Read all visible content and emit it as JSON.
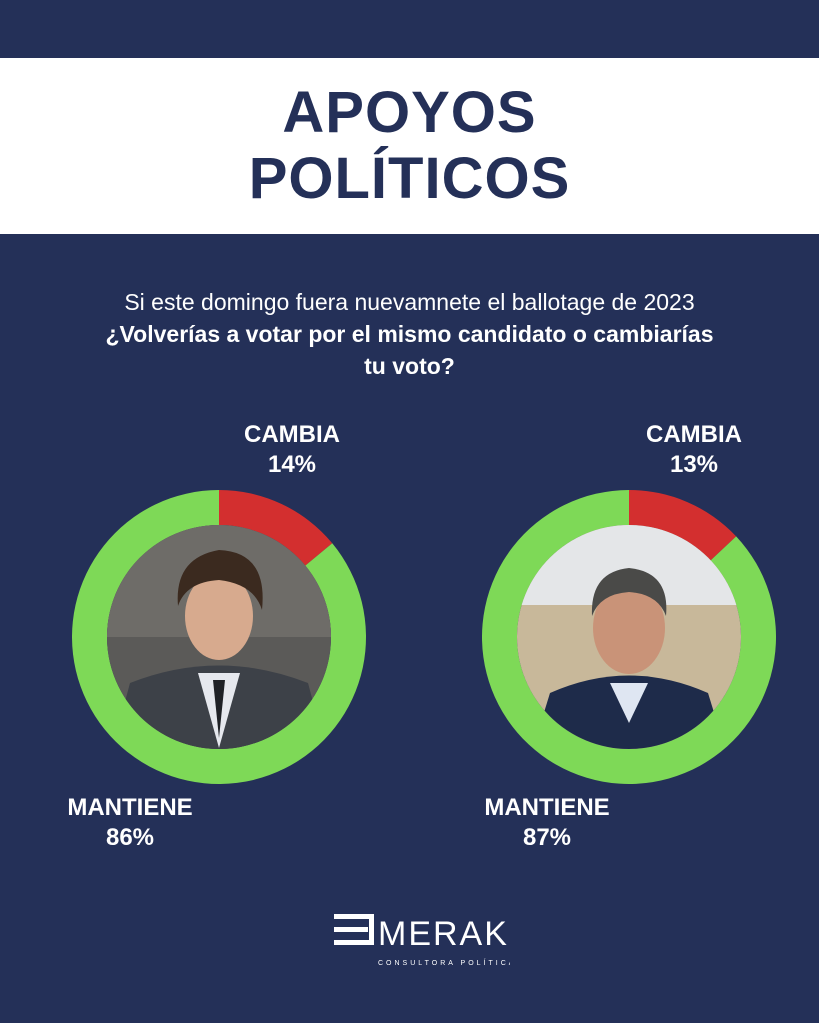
{
  "title": {
    "line1": "APOYOS",
    "line2": "POLÍTICOS"
  },
  "question": {
    "plain": "Si este domingo fuera nuevamnete el ballotage de 2023 ",
    "bold": "¿Volverías a votar por el mismo candidato o cambiarías tu voto?"
  },
  "colors": {
    "background": "#243058",
    "mantiene": "#7ed957",
    "cambia": "#d32f2f",
    "title_text": "#243058"
  },
  "chart_data": [
    {
      "type": "pie",
      "categories": [
        "CAMBIA",
        "MANTIENE"
      ],
      "values": [
        14,
        86
      ],
      "value_labels": [
        "14%",
        "86%"
      ],
      "center_image": "candidate-photo-1"
    },
    {
      "type": "pie",
      "categories": [
        "CAMBIA",
        "MANTIENE"
      ],
      "values": [
        13,
        87
      ],
      "value_labels": [
        "13%",
        "87%"
      ],
      "center_image": "candidate-photo-2"
    }
  ],
  "logo": {
    "name": "MERAKI",
    "subtitle": "CONSULTORA POLÍTICA"
  }
}
